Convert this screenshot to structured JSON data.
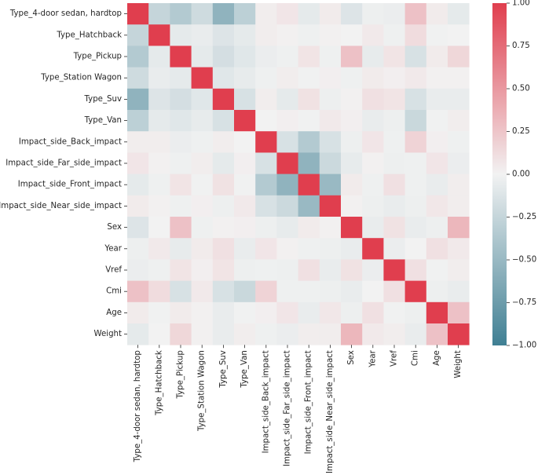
{
  "chart_data": {
    "type": "heatmap",
    "title": "",
    "xlabel": "",
    "ylabel": "",
    "labels": [
      "Type_4-door sedan, hardtop",
      "Type_Hatchback",
      "Type_Pickup",
      "Type_Station Wagon",
      "Type_Suv",
      "Type_Van",
      "Impact_side_Back_impact",
      "Impact_side_Far_side_impact",
      "Impact_side_Front_impact",
      "Impact_side_Near_side_impact",
      "Sex",
      "Year",
      "Vref",
      "Cmi",
      "Age",
      "Weight"
    ],
    "matrix": [
      [
        1.0,
        -0.25,
        -0.35,
        -0.2,
        -0.55,
        -0.3,
        0.03,
        0.07,
        -0.07,
        0.04,
        -0.12,
        -0.03,
        -0.04,
        0.27,
        0.04,
        -0.07
      ],
      [
        -0.25,
        1.0,
        -0.07,
        -0.05,
        -0.12,
        -0.07,
        0.03,
        0.01,
        -0.02,
        0.01,
        0.0,
        0.05,
        -0.02,
        0.12,
        -0.01,
        0.0
      ],
      [
        -0.35,
        -0.07,
        1.0,
        -0.07,
        -0.17,
        -0.1,
        -0.04,
        -0.02,
        0.08,
        -0.02,
        0.27,
        -0.06,
        0.08,
        -0.15,
        0.04,
        0.15
      ],
      [
        -0.2,
        -0.05,
        -0.07,
        1.0,
        -0.1,
        -0.06,
        -0.02,
        0.03,
        -0.01,
        0.02,
        -0.02,
        0.04,
        0.02,
        0.05,
        0.01,
        0.01
      ],
      [
        -0.55,
        -0.12,
        -0.17,
        -0.1,
        1.0,
        -0.15,
        0.03,
        -0.07,
        0.09,
        -0.03,
        0.01,
        0.1,
        0.08,
        -0.15,
        -0.05,
        -0.05
      ],
      [
        -0.3,
        -0.07,
        -0.1,
        -0.06,
        -0.15,
        1.0,
        0.0,
        0.02,
        -0.01,
        0.05,
        0.02,
        -0.05,
        -0.03,
        -0.23,
        -0.01,
        0.03
      ],
      [
        0.03,
        0.03,
        -0.04,
        -0.02,
        0.03,
        0.0,
        1.0,
        -0.15,
        -0.35,
        -0.15,
        -0.03,
        0.07,
        -0.02,
        0.17,
        0.02,
        -0.02
      ],
      [
        0.07,
        0.01,
        -0.02,
        0.03,
        -0.07,
        0.02,
        -0.15,
        1.0,
        -0.55,
        -0.22,
        -0.06,
        0.01,
        -0.03,
        -0.02,
        0.07,
        -0.04
      ],
      [
        -0.07,
        -0.02,
        0.08,
        -0.01,
        0.09,
        -0.01,
        -0.35,
        -0.55,
        1.0,
        -0.5,
        0.04,
        -0.02,
        0.1,
        -0.02,
        -0.05,
        0.03
      ],
      [
        0.04,
        0.01,
        -0.02,
        0.02,
        -0.03,
        0.05,
        -0.15,
        -0.22,
        -0.5,
        1.0,
        0.01,
        -0.03,
        -0.05,
        -0.03,
        0.06,
        0.03
      ],
      [
        -0.12,
        0.0,
        0.27,
        -0.02,
        0.01,
        0.02,
        -0.03,
        -0.06,
        0.04,
        0.01,
        1.0,
        -0.05,
        0.09,
        -0.05,
        -0.03,
        0.33
      ],
      [
        -0.03,
        0.05,
        -0.06,
        0.04,
        0.1,
        -0.05,
        0.07,
        0.01,
        -0.02,
        -0.03,
        -0.05,
        1.0,
        -0.04,
        0.0,
        0.1,
        0.05
      ],
      [
        -0.04,
        -0.02,
        0.08,
        0.02,
        0.08,
        -0.03,
        -0.02,
        -0.03,
        0.1,
        -0.05,
        0.09,
        -0.04,
        1.0,
        0.1,
        -0.01,
        0.03
      ],
      [
        0.27,
        0.12,
        -0.15,
        0.05,
        -0.15,
        -0.23,
        0.17,
        -0.02,
        -0.02,
        -0.03,
        -0.05,
        0.0,
        0.1,
        1.0,
        -0.03,
        -0.05
      ],
      [
        0.04,
        -0.01,
        0.04,
        0.01,
        -0.05,
        -0.01,
        0.02,
        0.07,
        -0.05,
        0.06,
        -0.03,
        0.1,
        -0.01,
        -0.03,
        1.0,
        0.27
      ],
      [
        -0.07,
        0.0,
        0.15,
        0.01,
        -0.05,
        0.03,
        -0.02,
        -0.04,
        0.03,
        0.03,
        0.33,
        0.05,
        0.03,
        -0.05,
        0.27,
        1.0
      ]
    ],
    "vmin": -1.0,
    "vmax": 1.0,
    "colorbar": {
      "ticks": [
        1.0,
        0.75,
        0.5,
        0.25,
        0.0,
        -0.25,
        -0.5,
        -0.75,
        -1.0
      ],
      "tick_labels": [
        "1.00",
        "0.75",
        "0.50",
        "0.25",
        "0.00",
        "−0.25",
        "−0.50",
        "−0.75",
        "−1.00"
      ]
    },
    "colors": {
      "negative": "#3f7f93",
      "center": "#f2f2f2",
      "positive": "#e03e4e"
    }
  }
}
